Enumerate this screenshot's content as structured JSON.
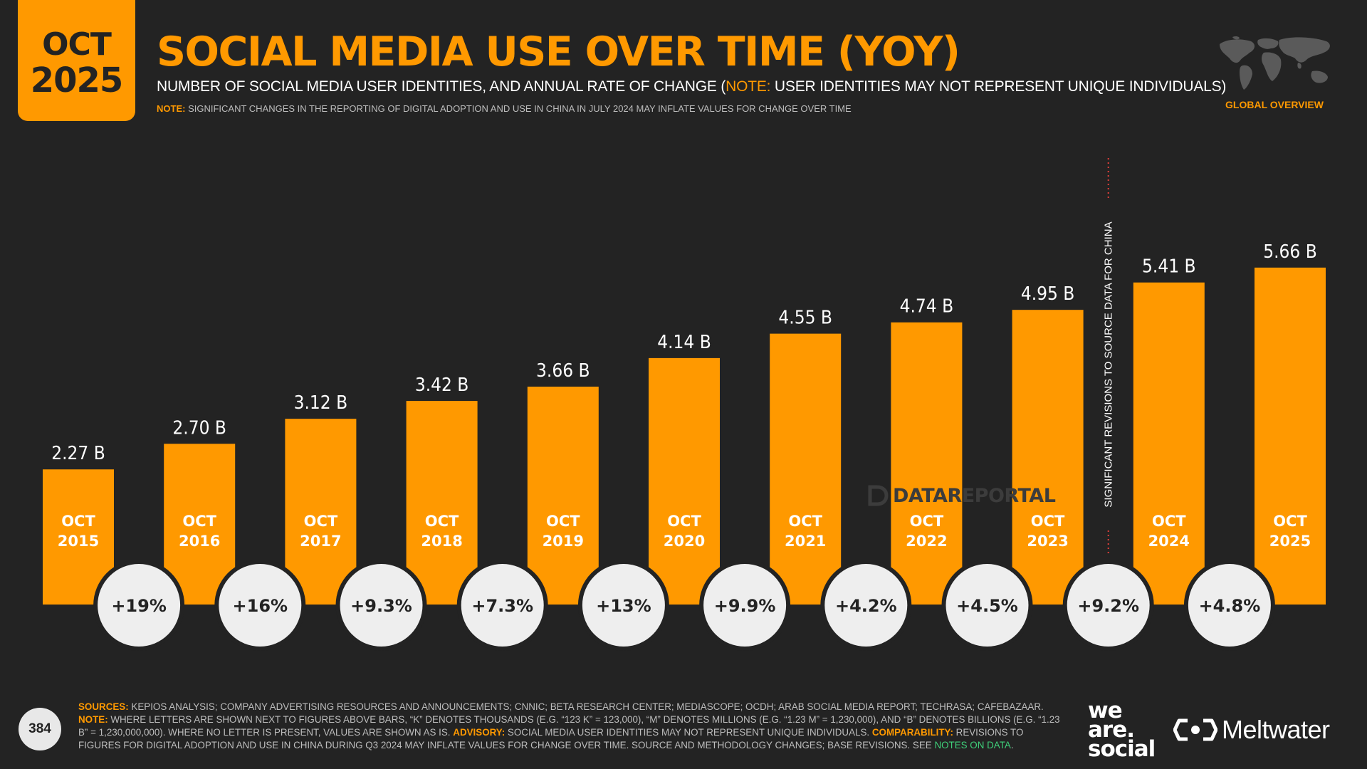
{
  "header": {
    "badge_month": "OCT",
    "badge_year": "2025",
    "title": "SOCIAL MEDIA USE OVER TIME (YOY)",
    "subtitle_pre": "NUMBER OF SOCIAL MEDIA USER IDENTITIES, AND ANNUAL RATE OF CHANGE (",
    "subtitle_note_label": "NOTE:",
    "subtitle_post": " USER IDENTITIES MAY NOT REPRESENT UNIQUE INDIVIDUALS)",
    "note_label": "NOTE:",
    "note_text": " SIGNIFICANT CHANGES IN THE REPORTING OF DIGITAL ADOPTION AND USE IN CHINA IN JULY 2024 MAY INFLATE VALUES FOR CHANGE OVER TIME",
    "section_label": "GLOBAL OVERVIEW"
  },
  "chart_data": {
    "type": "bar",
    "categories": [
      "OCT 2015",
      "OCT 2016",
      "OCT 2017",
      "OCT 2018",
      "OCT 2019",
      "OCT 2020",
      "OCT 2021",
      "OCT 2022",
      "OCT 2023",
      "OCT 2024",
      "OCT 2025"
    ],
    "values": [
      2.27,
      2.7,
      3.12,
      3.42,
      3.66,
      4.14,
      4.55,
      4.74,
      4.95,
      5.41,
      5.66
    ],
    "value_labels": [
      "2.27 B",
      "2.70 B",
      "3.12 B",
      "3.42 B",
      "3.66 B",
      "4.14 B",
      "4.55 B",
      "4.74 B",
      "4.95 B",
      "5.41 B",
      "5.66 B"
    ],
    "changes": [
      "+19%",
      "+16%",
      "+9.3%",
      "+7.3%",
      "+13%",
      "+9.9%",
      "+4.2%",
      "+4.5%",
      "+9.2%",
      "+4.8%"
    ],
    "annotation": "SIGNIFICANT REVISIONS TO SOURCE DATA FOR CHINA",
    "annotation_between": [
      "OCT 2023",
      "OCT 2024"
    ],
    "bar_color": "#ff9900",
    "grid": false,
    "legend": "none"
  },
  "watermark": "DATAREPORTAL",
  "footer": {
    "page_number": "384",
    "sources_label": "SOURCES:",
    "sources_text": " KEPIOS ANALYSIS; COMPANY ADVERTISING RESOURCES AND ANNOUNCEMENTS; CNNIC; BETA RESEARCH CENTER; MEDIASCOPE; OCDH; ARAB SOCIAL MEDIA REPORT; TECHRASA; CAFEBAZAAR.",
    "note_label": "NOTE:",
    "note_text": " WHERE LETTERS ARE SHOWN NEXT TO FIGURES ABOVE BARS, “K” DENOTES THOUSANDS (E.G. “123 K” = 123,000), “M” DENOTES MILLIONS (E.G. “1.23 M” = 1,230,000), AND “B” DENOTES BILLIONS (E.G. “1.23 B” = 1,230,000,000). WHERE NO LETTER IS PRESENT, VALUES ARE SHOWN AS IS.",
    "advisory_label": "ADVISORY:",
    "advisory_text": " SOCIAL MEDIA USER IDENTITIES MAY NOT REPRESENT UNIQUE INDIVIDUALS.",
    "comparability_label": "COMPARABILITY:",
    "comparability_text": " REVISIONS TO FIGURES FOR DIGITAL ADOPTION AND USE IN CHINA DURING Q3 2024 MAY INFLATE VALUES FOR CHANGE OVER TIME. SOURCE AND METHODOLOGY CHANGES; BASE REVISIONS. SEE ",
    "notes_link": "NOTES ON DATA",
    "end_text": "."
  },
  "logos": {
    "was_line1": "we",
    "was_line2": "are.",
    "was_line3": "social",
    "meltwater": "Meltwater"
  },
  "colors": {
    "accent": "#ff9900",
    "background": "#232323",
    "bubble": "#eeeeee"
  },
  "icons": [
    "world-map-icon",
    "datareportal-logo-icon",
    "meltwater-logo-icon"
  ]
}
